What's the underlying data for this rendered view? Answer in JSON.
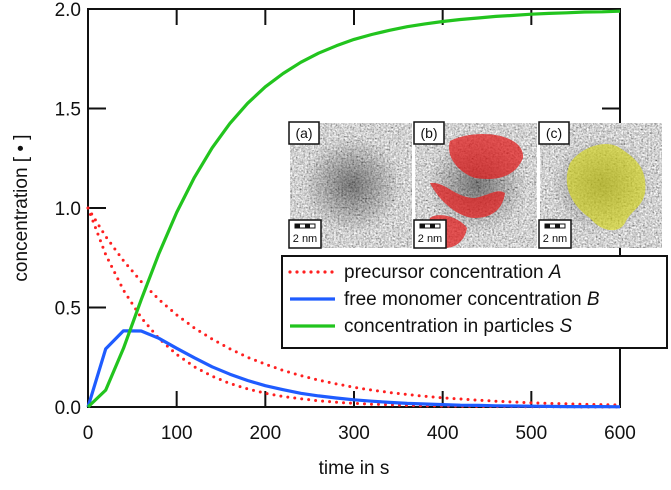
{
  "chart_data": {
    "type": "line",
    "title": "",
    "xlabel": "time in s",
    "ylabel": "concentration [ • ]",
    "xlim": [
      0,
      600
    ],
    "ylim": [
      0,
      2.0
    ],
    "xticks": [
      "0",
      "100",
      "200",
      "300",
      "400",
      "500",
      "600"
    ],
    "yticks": [
      "0.0",
      "0.5",
      "1.0",
      "1.5",
      "2.0"
    ],
    "grid": false,
    "legend_placement": "center-right",
    "x": [
      0,
      20,
      40,
      60,
      80,
      100,
      120,
      140,
      160,
      180,
      200,
      220,
      240,
      260,
      280,
      300,
      320,
      340,
      360,
      380,
      400,
      420,
      440,
      460,
      480,
      500,
      520,
      540,
      560,
      580,
      600
    ],
    "series": [
      {
        "name": "precursor concentration A",
        "legend_main": "precursor concentration ",
        "legend_var": "A",
        "color": "#ff2020",
        "style": "dotted",
        "values": [
          1,
          0.857,
          0.735,
          0.63,
          0.54,
          0.463,
          0.397,
          0.341,
          0.292,
          0.25,
          0.215,
          0.184,
          0.158,
          0.135,
          0.116,
          0.099,
          0.085,
          0.073,
          0.063,
          0.054,
          0.046,
          0.04,
          0.034,
          0.029,
          0.025,
          0.021,
          0.018,
          0.016,
          0.013,
          0.012,
          0.01
        ]
      },
      {
        "name": "precursor concentration A",
        "color": "#ff2020",
        "style": "dotted",
        "in_legend": false,
        "values": [
          1,
          0.766,
          0.587,
          0.449,
          0.344,
          0.264,
          0.202,
          0.155,
          0.118,
          0.091,
          0.069,
          0.053,
          0.041,
          0.031,
          0.024,
          0.018,
          0.014,
          0.011,
          0.008,
          0.006,
          0.005,
          0.004,
          0.003,
          0.002,
          0.002,
          0.001,
          0.001,
          0.001,
          0,
          0,
          0
        ]
      },
      {
        "name": "free monomer concentration B",
        "legend_main": "free monomer concentration ",
        "legend_var": "B",
        "color": "#1f5cff",
        "style": "solid",
        "values": [
          0,
          0.292,
          0.383,
          0.382,
          0.345,
          0.295,
          0.247,
          0.202,
          0.165,
          0.133,
          0.107,
          0.087,
          0.069,
          0.056,
          0.045,
          0.036,
          0.029,
          0.023,
          0.018,
          0.015,
          0.012,
          0.009,
          0.008,
          0.006,
          0.005,
          0.004,
          0.003,
          0.002,
          0.002,
          0.002,
          0.001
        ]
      },
      {
        "name": "concentration in particles S",
        "legend_main": "concentration in particles ",
        "legend_var": "S",
        "color": "#22c41e",
        "style": "solid",
        "values": [
          0,
          0.085,
          0.295,
          0.539,
          0.771,
          0.978,
          1.154,
          1.302,
          1.425,
          1.526,
          1.609,
          1.676,
          1.732,
          1.778,
          1.815,
          1.847,
          1.872,
          1.893,
          1.911,
          1.925,
          1.937,
          1.947,
          1.955,
          1.963,
          1.968,
          1.974,
          1.978,
          1.981,
          1.985,
          1.986,
          1.989
        ]
      }
    ],
    "inset": {
      "panels": [
        {
          "label": "(a)",
          "scale": "2 nm",
          "overlay": "none"
        },
        {
          "label": "(b)",
          "scale": "2 nm",
          "overlay": "#e02020"
        },
        {
          "label": "(c)",
          "scale": "2 nm",
          "overlay": "#d8d820"
        }
      ]
    }
  }
}
